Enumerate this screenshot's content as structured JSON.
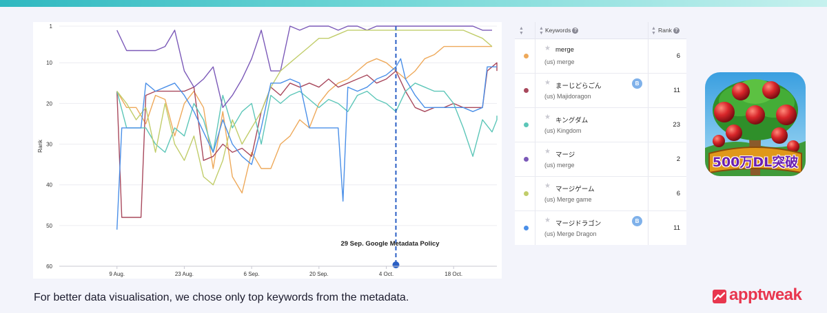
{
  "chart_data": {
    "type": "line",
    "xlabel": "",
    "ylabel": "Rank",
    "ylim": [
      1,
      60
    ],
    "y_inverted": true,
    "y_ticks": [
      1,
      10,
      20,
      30,
      40,
      50,
      60
    ],
    "x_ticks": [
      "9 Aug.",
      "23 Aug.",
      "6 Sep.",
      "20 Sep.",
      "4 Oct.",
      "18 Oct."
    ],
    "x_range_days": [
      -12,
      79
    ],
    "annotation": {
      "label": "29 Sep. Google Metadata Policy",
      "day": 58
    },
    "grid": "horizontal",
    "series": [
      {
        "key": "merge",
        "color": "#eea95a",
        "points": [
          [
            0,
            17
          ],
          [
            2,
            21
          ],
          [
            4,
            21
          ],
          [
            6,
            25
          ],
          [
            8,
            18
          ],
          [
            10,
            19
          ],
          [
            12,
            28
          ],
          [
            14,
            20
          ],
          [
            16,
            17
          ],
          [
            18,
            21
          ],
          [
            20,
            36
          ],
          [
            22,
            22
          ],
          [
            24,
            38
          ],
          [
            26,
            42
          ],
          [
            28,
            32
          ],
          [
            30,
            36
          ],
          [
            32,
            36
          ],
          [
            34,
            30
          ],
          [
            36,
            28
          ],
          [
            38,
            24
          ],
          [
            40,
            26
          ],
          [
            42,
            20
          ],
          [
            44,
            17
          ],
          [
            46,
            15
          ],
          [
            48,
            14
          ],
          [
            50,
            12
          ],
          [
            52,
            10
          ],
          [
            54,
            9
          ],
          [
            56,
            10
          ],
          [
            58,
            12
          ],
          [
            60,
            14
          ],
          [
            62,
            12
          ],
          [
            64,
            9
          ],
          [
            66,
            8
          ],
          [
            68,
            6
          ],
          [
            70,
            6
          ],
          [
            72,
            6
          ],
          [
            74,
            6
          ],
          [
            76,
            6
          ],
          [
            78,
            6
          ]
        ]
      },
      {
        "key": "majidoragon",
        "color": "#a8485c",
        "points": [
          [
            0,
            17
          ],
          [
            1,
            48
          ],
          [
            3,
            48
          ],
          [
            5,
            48
          ],
          [
            6,
            18
          ],
          [
            8,
            17
          ],
          [
            10,
            17
          ],
          [
            12,
            17
          ],
          [
            14,
            17
          ],
          [
            16,
            16
          ],
          [
            18,
            34
          ],
          [
            20,
            33
          ],
          [
            22,
            30
          ],
          [
            24,
            32
          ],
          [
            26,
            31
          ],
          [
            28,
            33
          ],
          [
            30,
            22
          ],
          [
            32,
            16
          ],
          [
            34,
            18
          ],
          [
            36,
            15
          ],
          [
            38,
            16
          ],
          [
            40,
            15
          ],
          [
            42,
            16
          ],
          [
            44,
            14
          ],
          [
            46,
            16
          ],
          [
            48,
            15
          ],
          [
            50,
            14
          ],
          [
            52,
            13
          ],
          [
            54,
            15
          ],
          [
            56,
            14
          ],
          [
            58,
            12
          ],
          [
            60,
            17
          ],
          [
            62,
            21
          ],
          [
            64,
            22
          ],
          [
            66,
            21
          ],
          [
            68,
            21
          ],
          [
            70,
            20
          ],
          [
            72,
            21
          ],
          [
            74,
            21
          ],
          [
            76,
            21
          ],
          [
            77,
            12
          ],
          [
            78,
            11
          ],
          [
            79,
            10
          ],
          [
            79,
            12
          ]
        ]
      },
      {
        "key": "kingdom",
        "color": "#5cc6b8",
        "points": [
          [
            0,
            17
          ],
          [
            2,
            26
          ],
          [
            4,
            26
          ],
          [
            6,
            26
          ],
          [
            8,
            30
          ],
          [
            10,
            32
          ],
          [
            12,
            26
          ],
          [
            14,
            28
          ],
          [
            16,
            20
          ],
          [
            18,
            24
          ],
          [
            20,
            32
          ],
          [
            22,
            18
          ],
          [
            24,
            26
          ],
          [
            26,
            22
          ],
          [
            28,
            20
          ],
          [
            30,
            30
          ],
          [
            32,
            18
          ],
          [
            34,
            20
          ],
          [
            36,
            18
          ],
          [
            38,
            17
          ],
          [
            40,
            19
          ],
          [
            42,
            21
          ],
          [
            44,
            19
          ],
          [
            46,
            20
          ],
          [
            48,
            22
          ],
          [
            50,
            18
          ],
          [
            52,
            17
          ],
          [
            54,
            19
          ],
          [
            56,
            20
          ],
          [
            58,
            22
          ],
          [
            60,
            17
          ],
          [
            62,
            15
          ],
          [
            64,
            16
          ],
          [
            66,
            17
          ],
          [
            68,
            17
          ],
          [
            70,
            20
          ],
          [
            72,
            26
          ],
          [
            74,
            33
          ],
          [
            76,
            24
          ],
          [
            78,
            27
          ],
          [
            79,
            24
          ],
          [
            79,
            23
          ]
        ]
      },
      {
        "key": "maji",
        "color": "#7b59b8",
        "points": [
          [
            0,
            2
          ],
          [
            2,
            7
          ],
          [
            4,
            7
          ],
          [
            6,
            7
          ],
          [
            8,
            7
          ],
          [
            10,
            6
          ],
          [
            12,
            2
          ],
          [
            14,
            12
          ],
          [
            16,
            16
          ],
          [
            18,
            14
          ],
          [
            20,
            11
          ],
          [
            22,
            21
          ],
          [
            24,
            18
          ],
          [
            26,
            14
          ],
          [
            28,
            9
          ],
          [
            30,
            2
          ],
          [
            32,
            12
          ],
          [
            34,
            12
          ],
          [
            36,
            1
          ],
          [
            38,
            2
          ],
          [
            40,
            1
          ],
          [
            42,
            1
          ],
          [
            44,
            1
          ],
          [
            46,
            2
          ],
          [
            48,
            1
          ],
          [
            50,
            1
          ],
          [
            52,
            2
          ],
          [
            54,
            1
          ],
          [
            56,
            1
          ],
          [
            58,
            1
          ],
          [
            60,
            1
          ],
          [
            62,
            1
          ],
          [
            64,
            1
          ],
          [
            66,
            1
          ],
          [
            68,
            1
          ],
          [
            70,
            1
          ],
          [
            72,
            1
          ],
          [
            74,
            1
          ],
          [
            76,
            2
          ],
          [
            78,
            2
          ]
        ]
      },
      {
        "key": "merge-game",
        "color": "#c1cd6a",
        "points": [
          [
            0,
            17
          ],
          [
            2,
            20
          ],
          [
            4,
            24
          ],
          [
            6,
            21
          ],
          [
            8,
            32
          ],
          [
            10,
            20
          ],
          [
            12,
            30
          ],
          [
            14,
            34
          ],
          [
            16,
            28
          ],
          [
            18,
            38
          ],
          [
            20,
            40
          ],
          [
            22,
            34
          ],
          [
            24,
            24
          ],
          [
            26,
            30
          ],
          [
            28,
            26
          ],
          [
            30,
            22
          ],
          [
            32,
            16
          ],
          [
            34,
            12
          ],
          [
            36,
            10
          ],
          [
            38,
            8
          ],
          [
            40,
            6
          ],
          [
            42,
            4
          ],
          [
            44,
            4
          ],
          [
            46,
            3
          ],
          [
            48,
            2
          ],
          [
            50,
            2
          ],
          [
            52,
            2
          ],
          [
            54,
            2
          ],
          [
            56,
            2
          ],
          [
            58,
            2
          ],
          [
            60,
            2
          ],
          [
            62,
            2
          ],
          [
            64,
            2
          ],
          [
            66,
            2
          ],
          [
            68,
            2
          ],
          [
            70,
            2
          ],
          [
            72,
            2
          ],
          [
            74,
            3
          ],
          [
            76,
            4
          ],
          [
            78,
            6
          ]
        ]
      },
      {
        "key": "merge-dragon",
        "color": "#4a8fe8",
        "points": [
          [
            0,
            51
          ],
          [
            1,
            26
          ],
          [
            3,
            26
          ],
          [
            5,
            26
          ],
          [
            6,
            15
          ],
          [
            8,
            17
          ],
          [
            10,
            16
          ],
          [
            12,
            15
          ],
          [
            14,
            18
          ],
          [
            16,
            22
          ],
          [
            18,
            27
          ],
          [
            20,
            32
          ],
          [
            22,
            24
          ],
          [
            24,
            30
          ],
          [
            26,
            33
          ],
          [
            28,
            35
          ],
          [
            30,
            26
          ],
          [
            32,
            15
          ],
          [
            34,
            15
          ],
          [
            36,
            14
          ],
          [
            38,
            15
          ],
          [
            40,
            26
          ],
          [
            42,
            26
          ],
          [
            44,
            26
          ],
          [
            46,
            26
          ],
          [
            47,
            44
          ],
          [
            48,
            16
          ],
          [
            50,
            17
          ],
          [
            52,
            16
          ],
          [
            54,
            14
          ],
          [
            56,
            13
          ],
          [
            58,
            11
          ],
          [
            59,
            9
          ],
          [
            60,
            14
          ],
          [
            62,
            18
          ],
          [
            64,
            21
          ],
          [
            66,
            21
          ],
          [
            68,
            21
          ],
          [
            70,
            21
          ],
          [
            72,
            21
          ],
          [
            74,
            22
          ],
          [
            76,
            21
          ],
          [
            77,
            11
          ],
          [
            78,
            11
          ],
          [
            79,
            11
          ]
        ]
      }
    ]
  },
  "table": {
    "header": {
      "keywords": "Keywords",
      "rank": "Rank",
      "help_icon": "?"
    },
    "rows": [
      {
        "keyword": "merge",
        "sub": "(us) merge",
        "rank": "6",
        "color": "#eea95a",
        "badge": ""
      },
      {
        "keyword": "まーじどらごん",
        "sub": "(us) Majidoragon",
        "rank": "11",
        "color": "#a8485c",
        "badge": "B"
      },
      {
        "keyword": "キングダム",
        "sub": "(us) Kingdom",
        "rank": "23",
        "color": "#5cc6b8",
        "badge": ""
      },
      {
        "keyword": "マージ",
        "sub": "(us) merge",
        "rank": "2",
        "color": "#7b59b8",
        "badge": ""
      },
      {
        "keyword": "マージゲーム",
        "sub": "(us) Merge game",
        "rank": "6",
        "color": "#c1cd6a",
        "badge": ""
      },
      {
        "keyword": "マージドラゴン",
        "sub": "(us) Merge Dragon",
        "rank": "11",
        "color": "#4a8fe8",
        "badge": "B"
      }
    ]
  },
  "app_icon": {
    "icon": "merge-dragon-app-icon",
    "badge_text": "500万DL突破"
  },
  "caption": "For better data visualisation, we chose only top keywords from the metadata.",
  "brand": {
    "name": "apptweak",
    "color": "#e8364e"
  }
}
